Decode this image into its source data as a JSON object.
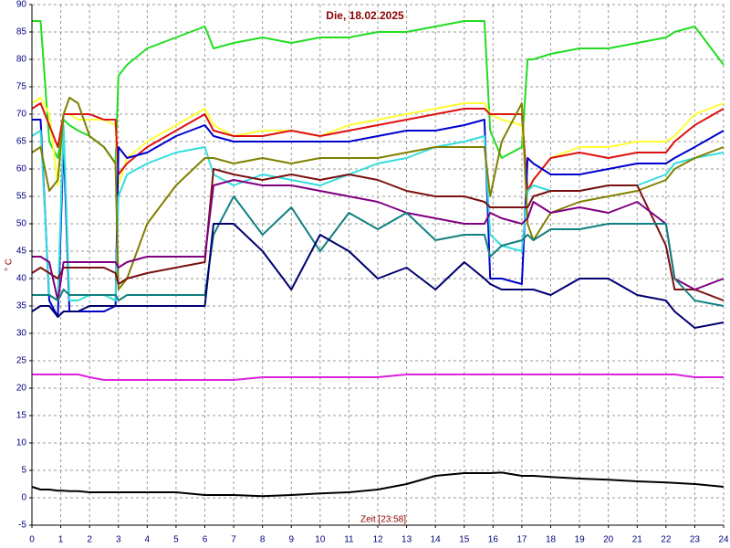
{
  "chart_data": {
    "type": "line",
    "title": "Die, 18.02.2025",
    "x_label": "Zeit [23:58]",
    "y_label": "° C",
    "x": [
      0,
      0.3,
      0.6,
      0.9,
      1.1,
      1.3,
      1.6,
      2,
      2.5,
      2.9,
      3,
      3.3,
      4,
      5,
      6,
      6.3,
      7,
      8,
      9,
      10,
      11,
      12,
      13,
      14,
      15,
      15.7,
      15.9,
      16.3,
      17,
      17.2,
      17.4,
      18,
      19,
      20,
      21,
      22,
      22.3,
      23,
      24
    ],
    "xlim": [
      0,
      24
    ],
    "xticks": [
      0,
      1,
      2,
      3,
      4,
      5,
      6,
      7,
      8,
      9,
      10,
      11,
      12,
      13,
      14,
      15,
      16,
      17,
      18,
      19,
      20,
      21,
      22,
      23,
      24
    ],
    "ylim": [
      -5,
      90
    ],
    "yticks": [
      -5,
      0,
      5,
      10,
      15,
      20,
      25,
      30,
      35,
      40,
      45,
      50,
      55,
      60,
      65,
      70,
      75,
      80,
      85,
      90
    ],
    "grid": true,
    "series": [
      {
        "color": "#22dd22",
        "values": [
          87,
          87,
          65,
          62,
          69,
          68,
          67,
          66,
          64,
          61,
          77,
          79,
          82,
          84,
          86,
          82,
          83,
          84,
          83,
          84,
          84,
          85,
          85,
          86,
          87,
          87,
          67,
          62,
          64,
          80,
          80,
          81,
          82,
          82,
          83,
          84,
          85,
          86,
          79
        ]
      },
      {
        "color": "#ffff33",
        "values": [
          72,
          73,
          70,
          57,
          70,
          70,
          69,
          69,
          69,
          68,
          57,
          62,
          65,
          68,
          71,
          68,
          66,
          67,
          67,
          66,
          68,
          69,
          70,
          71,
          72,
          72,
          70,
          69,
          68,
          56,
          58,
          62,
          64,
          64,
          65,
          65,
          66,
          70,
          72
        ]
      },
      {
        "color": "#dd1111",
        "values": [
          71,
          72,
          68,
          64,
          70,
          70,
          70,
          70,
          69,
          69,
          59,
          61,
          64,
          67,
          70,
          67,
          66,
          66,
          67,
          66,
          67,
          68,
          69,
          70,
          71,
          71,
          70,
          70,
          70,
          56,
          58,
          62,
          63,
          62,
          63,
          63,
          65,
          68,
          71
        ]
      },
      {
        "color": "#0000cc",
        "values": [
          69,
          69,
          36,
          33,
          65,
          34,
          34,
          34,
          34,
          35,
          64,
          62,
          63,
          66,
          68,
          66,
          65,
          65,
          65,
          65,
          65,
          66,
          67,
          67,
          68,
          69,
          40,
          40,
          39,
          62,
          61,
          59,
          59,
          60,
          61,
          61,
          62,
          64,
          67
        ]
      },
      {
        "color": "#33dddd",
        "values": [
          66,
          67,
          37,
          36,
          68,
          36,
          36,
          37,
          37,
          36,
          55,
          59,
          61,
          63,
          64,
          59,
          57,
          59,
          58,
          57,
          59,
          61,
          62,
          64,
          65,
          66,
          48,
          46,
          45,
          56,
          57,
          56,
          56,
          57,
          57,
          59,
          61,
          62,
          63
        ]
      },
      {
        "color": "#808000",
        "values": [
          63,
          64,
          56,
          58,
          70,
          73,
          72,
          66,
          64,
          61,
          38,
          40,
          50,
          57,
          62,
          62,
          61,
          62,
          61,
          62,
          62,
          62,
          63,
          64,
          64,
          64,
          55,
          65,
          72,
          50,
          47,
          52,
          54,
          55,
          56,
          58,
          60,
          62,
          64
        ]
      },
      {
        "color": "#7a1010",
        "values": [
          41,
          42,
          41,
          40,
          42,
          42,
          42,
          42,
          42,
          41,
          39,
          40,
          41,
          42,
          43,
          60,
          59,
          58,
          59,
          58,
          59,
          58,
          56,
          55,
          55,
          54,
          53,
          53,
          53,
          53,
          55,
          56,
          56,
          57,
          57,
          46,
          38,
          38,
          36
        ]
      },
      {
        "color": "#800080",
        "values": [
          44,
          44,
          43,
          36,
          43,
          43,
          43,
          43,
          43,
          43,
          42,
          43,
          44,
          44,
          44,
          57,
          58,
          57,
          57,
          56,
          55,
          54,
          52,
          51,
          50,
          50,
          52,
          51,
          50,
          51,
          54,
          52,
          53,
          52,
          54,
          50,
          40,
          38,
          40
        ]
      },
      {
        "color": "#108080",
        "values": [
          37,
          37,
          37,
          36,
          38,
          37,
          37,
          37,
          37,
          37,
          36,
          37,
          37,
          37,
          37,
          48,
          55,
          48,
          53,
          45,
          52,
          49,
          52,
          47,
          48,
          48,
          44,
          46,
          47,
          48,
          47,
          49,
          49,
          50,
          50,
          50,
          40,
          36,
          35
        ]
      },
      {
        "color": "#000070",
        "values": [
          34,
          35,
          35,
          33,
          34,
          34,
          34,
          35,
          35,
          35,
          35,
          35,
          35,
          35,
          35,
          50,
          50,
          45,
          38,
          48,
          45,
          40,
          42,
          38,
          43,
          40,
          39,
          38,
          38,
          38,
          38,
          37,
          40,
          40,
          37,
          36,
          34,
          31,
          32
        ]
      },
      {
        "color": "#dd22dd",
        "values": [
          22.5,
          22.5,
          22.5,
          22.5,
          22.5,
          22.5,
          22.5,
          22,
          21.5,
          21.5,
          21.5,
          21.5,
          21.5,
          21.5,
          21.5,
          21.5,
          21.5,
          22,
          22,
          22,
          22,
          22,
          22.5,
          22.5,
          22.5,
          22.5,
          22.5,
          22.5,
          22.5,
          22.5,
          22.5,
          22.5,
          22.5,
          22.5,
          22.5,
          22.5,
          22.5,
          22,
          22
        ]
      },
      {
        "color": "#000000",
        "values": [
          2,
          1.5,
          1.5,
          1.3,
          1.3,
          1.2,
          1.2,
          1,
          1,
          1,
          1,
          1,
          1,
          1,
          0.5,
          0.5,
          0.5,
          0.3,
          0.5,
          0.8,
          1,
          1.5,
          2.5,
          4,
          4.5,
          4.5,
          4.5,
          4.6,
          4,
          4,
          4,
          3.8,
          3.5,
          3.3,
          3,
          2.8,
          2.7,
          2.5,
          2
        ]
      }
    ]
  }
}
